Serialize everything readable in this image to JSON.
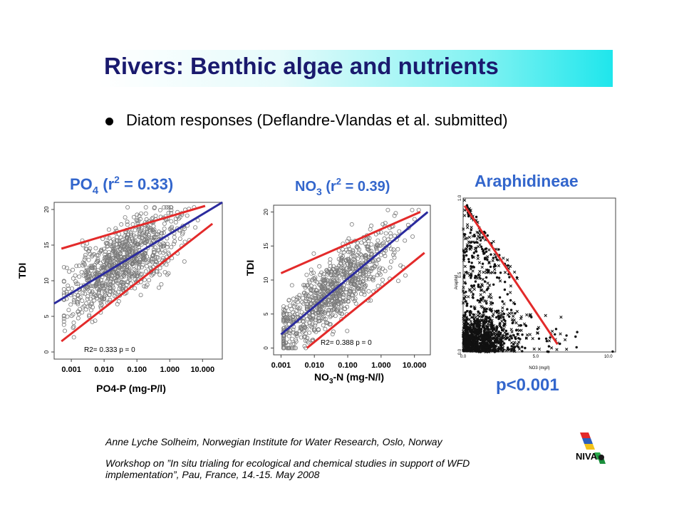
{
  "slide": {
    "title": "Rivers: Benthic algae and nutrients",
    "bullet": "Diatom responses (Deflandre-Vlandas et al. submitted)"
  },
  "colors": {
    "title": "#1a1a6e",
    "band_start": "#ffffff",
    "band_end": "#1fe6ec",
    "fit_line": "#2b2b9e",
    "bound_line": "#e32a2a",
    "points": "#7a7a7a"
  },
  "chart_data": [
    {
      "type": "scatter",
      "title": "PO",
      "title_sub": "4",
      "title_rest": " (r",
      "title_sup": "2",
      "title_end": " = 0.33)",
      "xlabel": "PO4-P (mg-P/l)",
      "ylabel": "TDI",
      "xscale": "log",
      "xlim": [
        0.0003,
        40
      ],
      "ylim": [
        -1,
        21
      ],
      "xticks": [
        "0.001",
        "0.010",
        "0.100",
        "1.000",
        "10.000"
      ],
      "yticks": [
        "0",
        "5",
        "10",
        "15",
        "20"
      ],
      "annotation": "R2= 0.333  p =  0",
      "fit_line": {
        "x": [
          0.0003,
          40
        ],
        "y": [
          6.8,
          21
        ]
      },
      "upper_line": {
        "x": [
          0.0005,
          12
        ],
        "y": [
          14.5,
          20.5
        ]
      },
      "lower_line": {
        "x": [
          0.0005,
          20
        ],
        "y": [
          1.5,
          18
        ]
      },
      "icon": "scatter-circles"
    },
    {
      "type": "scatter",
      "title": "NO",
      "title_sub": "3",
      "title_rest": " (r",
      "title_sup": "2",
      "title_end": " = 0.39)",
      "xlabel": "NO",
      "xlabel_sub": "3",
      "xlabel_rest": "-N (mg-N/l)",
      "ylabel": "TDI",
      "xscale": "log",
      "xlim": [
        0.0006,
        30
      ],
      "ylim": [
        -1,
        21
      ],
      "xticks": [
        "0.001",
        "0.010",
        "0.100",
        "1.000",
        "10.000"
      ],
      "yticks": [
        "0",
        "5",
        "10",
        "15",
        "20"
      ],
      "annotation": "R2= 0.388  p =  0",
      "fit_line": {
        "x": [
          0.001,
          25
        ],
        "y": [
          2,
          20
        ]
      },
      "upper_line": {
        "x": [
          0.001,
          15
        ],
        "y": [
          11,
          20
        ]
      },
      "lower_line": {
        "x": [
          0.006,
          20
        ],
        "y": [
          0,
          14
        ]
      },
      "icon": "scatter-circles"
    },
    {
      "type": "scatter",
      "title": "Araphidineae",
      "xlabel": "NO3 (mg/l)",
      "ylabel": "Araphid",
      "xlim": [
        0,
        10.5
      ],
      "ylim": [
        0,
        1.0
      ],
      "xticks": [
        "0.0",
        "5.0",
        "10.0"
      ],
      "yticks": [
        "0.0",
        "0.5",
        "1.0"
      ],
      "annotation": "p<0.001",
      "trend_line": {
        "x": [
          0.1,
          6.5
        ],
        "y": [
          0.95,
          0.05
        ]
      },
      "icon": "scatter-crosses"
    }
  ],
  "footer": {
    "author": "Anne Lyche Solheim, Norwegian Institute for Water Research, Oslo, Norway",
    "workshop_line1": "Workshop on ”In situ trialing for ecological and chemical studies in support of WFD",
    "workshop_line2": "implementation”, Pau, France, 14.-15. May 2008",
    "logo_text": "NIVA"
  }
}
